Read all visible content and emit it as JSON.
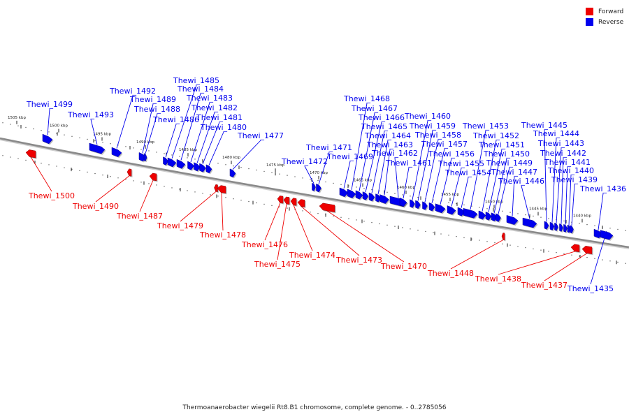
{
  "caption": "Thermoanaerobacter wiegelii Rt8.B1 chromosome, complete genome. - 0..2785056",
  "legend": [
    {
      "label": "Forward",
      "color": "#ee0000"
    },
    {
      "label": "Reverse",
      "color": "#0000ee"
    }
  ],
  "colors": {
    "forward": "#ee0000",
    "reverse": "#0000ee",
    "backbone": "#999999"
  },
  "ticks": [
    "1505 kbp",
    "1500 kbp",
    "1495 kbp",
    "1490 kbp",
    "1485 kbp",
    "1480 kbp",
    "1475 kbp",
    "1470 kbp",
    "1465 kbp",
    "1460 kbp",
    "1455 kbp",
    "1450 kbp",
    "1445 kbp",
    "1440 kbp"
  ],
  "genes": [
    {
      "id": "Thewi_1500",
      "strand": "forward"
    },
    {
      "id": "Thewi_1499",
      "strand": "reverse"
    },
    {
      "id": "Thewi_1493",
      "strand": "reverse"
    },
    {
      "id": "Thewi_1492",
      "strand": "reverse"
    },
    {
      "id": "Thewi_1490",
      "strand": "forward"
    },
    {
      "id": "Thewi_1489",
      "strand": "reverse"
    },
    {
      "id": "Thewi_1488",
      "strand": "reverse"
    },
    {
      "id": "Thewi_1487",
      "strand": "forward"
    },
    {
      "id": "Thewi_1486",
      "strand": "reverse"
    },
    {
      "id": "Thewi_1485",
      "strand": "reverse"
    },
    {
      "id": "Thewi_1484",
      "strand": "reverse"
    },
    {
      "id": "Thewi_1483",
      "strand": "reverse"
    },
    {
      "id": "Thewi_1482",
      "strand": "reverse"
    },
    {
      "id": "Thewi_1481",
      "strand": "reverse"
    },
    {
      "id": "Thewi_1480",
      "strand": "reverse"
    },
    {
      "id": "Thewi_1479",
      "strand": "forward"
    },
    {
      "id": "Thewi_1478",
      "strand": "forward"
    },
    {
      "id": "Thewi_1477",
      "strand": "reverse"
    },
    {
      "id": "Thewi_1476",
      "strand": "forward"
    },
    {
      "id": "Thewi_1475",
      "strand": "forward"
    },
    {
      "id": "Thewi_1474",
      "strand": "forward"
    },
    {
      "id": "Thewi_1473",
      "strand": "forward"
    },
    {
      "id": "Thewi_1472",
      "strand": "reverse"
    },
    {
      "id": "Thewi_1471",
      "strand": "reverse"
    },
    {
      "id": "Thewi_1470",
      "strand": "forward"
    },
    {
      "id": "Thewi_1469",
      "strand": "reverse"
    },
    {
      "id": "Thewi_1468",
      "strand": "reverse"
    },
    {
      "id": "Thewi_1467",
      "strand": "reverse"
    },
    {
      "id": "Thewi_1466",
      "strand": "reverse"
    },
    {
      "id": "Thewi_1465",
      "strand": "reverse"
    },
    {
      "id": "Thewi_1464",
      "strand": "reverse"
    },
    {
      "id": "Thewi_1463",
      "strand": "reverse"
    },
    {
      "id": "Thewi_1462",
      "strand": "reverse"
    },
    {
      "id": "Thewi_1461",
      "strand": "reverse"
    },
    {
      "id": "Thewi_1460",
      "strand": "reverse"
    },
    {
      "id": "Thewi_1459",
      "strand": "reverse"
    },
    {
      "id": "Thewi_1458",
      "strand": "reverse"
    },
    {
      "id": "Thewi_1457",
      "strand": "reverse"
    },
    {
      "id": "Thewi_1456",
      "strand": "reverse"
    },
    {
      "id": "Thewi_1455",
      "strand": "reverse"
    },
    {
      "id": "Thewi_1454",
      "strand": "reverse"
    },
    {
      "id": "Thewi_1453",
      "strand": "reverse"
    },
    {
      "id": "Thewi_1452",
      "strand": "reverse"
    },
    {
      "id": "Thewi_1451",
      "strand": "reverse"
    },
    {
      "id": "Thewi_1450",
      "strand": "reverse"
    },
    {
      "id": "Thewi_1449",
      "strand": "reverse"
    },
    {
      "id": "Thewi_1448",
      "strand": "forward"
    },
    {
      "id": "Thewi_1447",
      "strand": "reverse"
    },
    {
      "id": "Thewi_1446",
      "strand": "reverse"
    },
    {
      "id": "Thewi_1445",
      "strand": "reverse"
    },
    {
      "id": "Thewi_1444",
      "strand": "reverse"
    },
    {
      "id": "Thewi_1443",
      "strand": "reverse"
    },
    {
      "id": "Thewi_1442",
      "strand": "reverse"
    },
    {
      "id": "Thewi_1441",
      "strand": "reverse"
    },
    {
      "id": "Thewi_1440",
      "strand": "reverse"
    },
    {
      "id": "Thewi_1439",
      "strand": "reverse"
    },
    {
      "id": "Thewi_1438",
      "strand": "forward"
    },
    {
      "id": "Thewi_1437",
      "strand": "forward"
    },
    {
      "id": "Thewi_1436",
      "strand": "reverse"
    },
    {
      "id": "Thewi_1435",
      "strand": "reverse"
    }
  ]
}
